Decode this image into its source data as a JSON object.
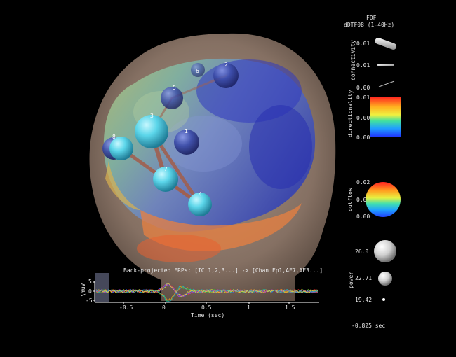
{
  "header": {
    "line1": "FDF",
    "line2": "dDTF08 (1-40Hz)"
  },
  "legend": {
    "connectivity": {
      "label": "connectivity",
      "ticks": [
        "0.01",
        "0.01",
        "0.00"
      ]
    },
    "directionality": {
      "label": "directionality",
      "ticks": [
        "0.01",
        "0.00",
        "0.00"
      ]
    },
    "outflow": {
      "label": "outflow",
      "ticks": [
        "0.02",
        "0.0",
        "0.00"
      ]
    },
    "power": {
      "label": "power",
      "ticks": [
        "26.0",
        "22.71",
        "19.42"
      ]
    },
    "time_readout": "-0.825 sec"
  },
  "erp": {
    "title": "Back-projected ERPs: [IC 1,2,3...] -> [Chan Fp1,AF7,AF3...]",
    "ylabel": "\\muV",
    "xlabel": "Time (sec)",
    "y_ticks": [
      "5",
      "0",
      "-5"
    ],
    "x_ticks": [
      "-0.5",
      "0",
      "0.5",
      "1",
      "1.5"
    ],
    "x_range": [
      -0.825,
      1.85
    ],
    "cursor_time": -0.825
  },
  "nodes": [
    {
      "label": "1"
    },
    {
      "label": "2"
    },
    {
      "label": "3"
    },
    {
      "label": "4"
    },
    {
      "label": "5"
    },
    {
      "label": "6"
    },
    {
      "label": "7"
    },
    {
      "label": "8"
    }
  ],
  "colors": {
    "background": "#000000",
    "head": "#a08c80",
    "node_cyan": "#55d4e6",
    "node_blue": "#3a4aa8",
    "edge": "#a06050"
  }
}
